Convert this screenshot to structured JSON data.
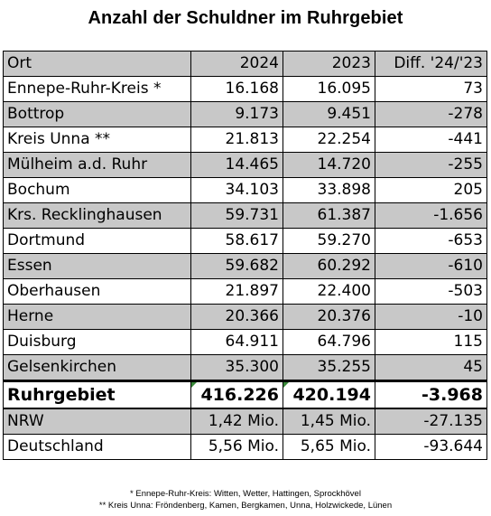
{
  "title": "Anzahl der Schuldner im Ruhrgebiet",
  "chart_data": {
    "type": "table",
    "title": "Anzahl der Schuldner im Ruhrgebiet",
    "columns": [
      "Ort",
      "2024",
      "2023",
      "Diff. '24/'23"
    ],
    "rows": [
      {
        "ort": "Ennepe-Ruhr-Kreis *",
        "y2024": "16.168",
        "y2023": "16.095",
        "diff": "73",
        "shaded": false
      },
      {
        "ort": "Bottrop",
        "y2024": "9.173",
        "y2023": "9.451",
        "diff": "-278",
        "shaded": true
      },
      {
        "ort": "Kreis Unna **",
        "y2024": "21.813",
        "y2023": "22.254",
        "diff": "-441",
        "shaded": false
      },
      {
        "ort": "Mülheim a.d. Ruhr",
        "y2024": "14.465",
        "y2023": "14.720",
        "diff": "-255",
        "shaded": true
      },
      {
        "ort": "Bochum",
        "y2024": "34.103",
        "y2023": "33.898",
        "diff": "205",
        "shaded": false
      },
      {
        "ort": "Krs. Recklinghausen",
        "y2024": "59.731",
        "y2023": "61.387",
        "diff": "-1.656",
        "shaded": true
      },
      {
        "ort": "Dortmund",
        "y2024": "58.617",
        "y2023": "59.270",
        "diff": "-653",
        "shaded": false
      },
      {
        "ort": "Essen",
        "y2024": "59.682",
        "y2023": "60.292",
        "diff": "-610",
        "shaded": true
      },
      {
        "ort": "Oberhausen",
        "y2024": "21.897",
        "y2023": "22.400",
        "diff": "-503",
        "shaded": false
      },
      {
        "ort": "Herne",
        "y2024": "20.366",
        "y2023": "20.376",
        "diff": "-10",
        "shaded": true
      },
      {
        "ort": "Duisburg",
        "y2024": "64.911",
        "y2023": "64.796",
        "diff": "115",
        "shaded": false
      },
      {
        "ort": "Gelsenkirchen",
        "y2024": "35.300",
        "y2023": "35.255",
        "diff": "45",
        "shaded": true
      }
    ],
    "total": {
      "ort": "Ruhrgebiet",
      "y2024": "416.226",
      "y2023": "420.194",
      "diff": "-3.968"
    },
    "comparison_rows": [
      {
        "ort": "NRW",
        "y2024": "1,42 Mio.",
        "y2023": "1,45 Mio.",
        "diff": "-27.135",
        "shaded": true
      },
      {
        "ort": "Deutschland",
        "y2024": "5,56 Mio.",
        "y2023": "5,65 Mio.",
        "diff": "-93.644",
        "shaded": false
      }
    ]
  },
  "colors": {
    "shaded_row": "#c8c8c8",
    "cell_marker": "#3a8a3a"
  },
  "footnotes": [
    "* Ennepe-Ruhr-Kreis: Witten, Wetter, Hattingen, Sprockhövel",
    "** Kreis Unna: Fröndenberg, Kamen, Bergkamen, Unna, Holzwickede, Lünen"
  ]
}
